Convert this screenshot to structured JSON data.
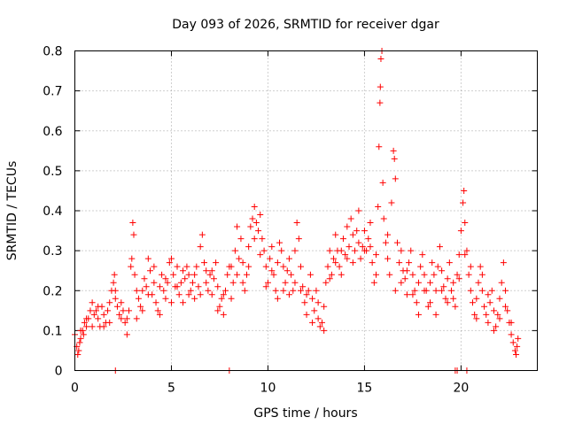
{
  "chart_data": {
    "type": "scatter",
    "title": "Day 093 of 2026, SRMTID for receiver dgar",
    "xlabel": "GPS time / hours",
    "ylabel": "SRMTID / TECUs",
    "xlim": [
      0,
      23.95
    ],
    "ylim": [
      0,
      0.8
    ],
    "xticks": [
      0,
      5,
      10,
      15,
      20
    ],
    "yticks": [
      0,
      0.1,
      0.2,
      0.3,
      0.4,
      0.5,
      0.6,
      0.7,
      0.8
    ],
    "x_tick_labels": [
      "0",
      "5",
      "10",
      "15",
      "20"
    ],
    "y_tick_labels": [
      "0",
      "0.1",
      "0.2",
      "0.3",
      "0.4",
      "0.5",
      "0.6",
      "0.7",
      "0.8"
    ],
    "grid": true,
    "marker": "plus",
    "color": "#ff0000",
    "series": [
      {
        "name": "SRMTID",
        "points": [
          [
            0.0,
            0.09
          ],
          [
            0.1,
            0.06
          ],
          [
            0.15,
            0.04
          ],
          [
            0.2,
            0.05
          ],
          [
            0.25,
            0.07
          ],
          [
            0.3,
            0.08
          ],
          [
            0.4,
            0.1
          ],
          [
            0.45,
            0.09
          ],
          [
            0.5,
            0.12
          ],
          [
            0.6,
            0.11
          ],
          [
            0.7,
            0.13
          ],
          [
            0.8,
            0.15
          ],
          [
            0.9,
            0.17
          ],
          [
            1.0,
            0.14
          ],
          [
            1.1,
            0.15
          ],
          [
            1.2,
            0.13
          ],
          [
            1.3,
            0.11
          ],
          [
            1.4,
            0.16
          ],
          [
            1.5,
            0.14
          ],
          [
            1.6,
            0.12
          ],
          [
            1.7,
            0.15
          ],
          [
            1.8,
            0.17
          ],
          [
            1.9,
            0.2
          ],
          [
            2.0,
            0.22
          ],
          [
            2.05,
            0.24
          ],
          [
            2.1,
            0.18
          ],
          [
            2.2,
            0.16
          ],
          [
            2.3,
            0.14
          ],
          [
            2.4,
            0.13
          ],
          [
            2.5,
            0.15
          ],
          [
            2.6,
            0.12
          ],
          [
            2.7,
            0.09
          ],
          [
            2.8,
            0.15
          ],
          [
            2.9,
            0.26
          ],
          [
            2.95,
            0.28
          ],
          [
            3.0,
            0.37
          ],
          [
            3.05,
            0.34
          ],
          [
            3.1,
            0.24
          ],
          [
            3.2,
            0.2
          ],
          [
            3.3,
            0.18
          ],
          [
            3.4,
            0.16
          ],
          [
            3.5,
            0.2
          ],
          [
            3.6,
            0.23
          ],
          [
            3.7,
            0.21
          ],
          [
            3.8,
            0.28
          ],
          [
            3.9,
            0.25
          ],
          [
            4.0,
            0.19
          ],
          [
            4.1,
            0.22
          ],
          [
            4.2,
            0.17
          ],
          [
            4.3,
            0.15
          ],
          [
            4.4,
            0.21
          ],
          [
            4.5,
            0.24
          ],
          [
            4.6,
            0.2
          ],
          [
            4.7,
            0.18
          ],
          [
            4.8,
            0.22
          ],
          [
            4.9,
            0.27
          ],
          [
            5.0,
            0.28
          ],
          [
            5.1,
            0.24
          ],
          [
            5.2,
            0.21
          ],
          [
            5.3,
            0.26
          ],
          [
            5.4,
            0.19
          ],
          [
            5.5,
            0.22
          ],
          [
            5.6,
            0.17
          ],
          [
            5.7,
            0.23
          ],
          [
            5.8,
            0.26
          ],
          [
            5.9,
            0.24
          ],
          [
            6.0,
            0.2
          ],
          [
            6.1,
            0.22
          ],
          [
            6.2,
            0.18
          ],
          [
            6.3,
            0.26
          ],
          [
            6.4,
            0.21
          ],
          [
            6.5,
            0.31
          ],
          [
            6.6,
            0.34
          ],
          [
            6.7,
            0.27
          ],
          [
            6.8,
            0.22
          ],
          [
            6.9,
            0.2
          ],
          [
            7.0,
            0.24
          ],
          [
            7.1,
            0.19
          ],
          [
            7.2,
            0.23
          ],
          [
            7.3,
            0.27
          ],
          [
            7.4,
            0.21
          ],
          [
            7.5,
            0.16
          ],
          [
            7.6,
            0.18
          ],
          [
            7.7,
            0.14
          ],
          [
            7.8,
            0.2
          ],
          [
            7.9,
            0.24
          ],
          [
            8.0,
            0.26
          ],
          [
            8.1,
            0.18
          ],
          [
            8.2,
            0.22
          ],
          [
            8.3,
            0.3
          ],
          [
            8.4,
            0.36
          ],
          [
            8.5,
            0.28
          ],
          [
            8.6,
            0.33
          ],
          [
            8.7,
            0.27
          ],
          [
            8.8,
            0.2
          ],
          [
            8.9,
            0.24
          ],
          [
            9.0,
            0.31
          ],
          [
            9.1,
            0.36
          ],
          [
            9.2,
            0.38
          ],
          [
            9.3,
            0.41
          ],
          [
            9.4,
            0.37
          ],
          [
            9.5,
            0.35
          ],
          [
            9.6,
            0.39
          ],
          [
            9.7,
            0.33
          ],
          [
            9.8,
            0.3
          ],
          [
            9.9,
            0.26
          ],
          [
            10.0,
            0.22
          ],
          [
            10.1,
            0.28
          ],
          [
            10.2,
            0.31
          ],
          [
            10.3,
            0.24
          ],
          [
            10.4,
            0.2
          ],
          [
            10.5,
            0.27
          ],
          [
            10.6,
            0.32
          ],
          [
            10.7,
            0.3
          ],
          [
            10.8,
            0.26
          ],
          [
            10.9,
            0.22
          ],
          [
            11.0,
            0.25
          ],
          [
            11.1,
            0.28
          ],
          [
            11.2,
            0.24
          ],
          [
            11.3,
            0.2
          ],
          [
            11.4,
            0.3
          ],
          [
            11.5,
            0.37
          ],
          [
            11.6,
            0.33
          ],
          [
            11.7,
            0.26
          ],
          [
            11.8,
            0.21
          ],
          [
            11.9,
            0.17
          ],
          [
            12.0,
            0.14
          ],
          [
            12.1,
            0.2
          ],
          [
            12.2,
            0.24
          ],
          [
            12.3,
            0.18
          ],
          [
            12.4,
            0.15
          ],
          [
            12.5,
            0.2
          ],
          [
            12.6,
            0.13
          ],
          [
            12.7,
            0.11
          ],
          [
            12.8,
            0.12
          ],
          [
            12.9,
            0.16
          ],
          [
            13.0,
            0.22
          ],
          [
            13.1,
            0.26
          ],
          [
            13.2,
            0.3
          ],
          [
            13.3,
            0.24
          ],
          [
            13.4,
            0.28
          ],
          [
            13.5,
            0.34
          ],
          [
            13.6,
            0.3
          ],
          [
            13.7,
            0.26
          ],
          [
            13.8,
            0.3
          ],
          [
            13.9,
            0.33
          ],
          [
            14.0,
            0.29
          ],
          [
            14.1,
            0.36
          ],
          [
            14.2,
            0.31
          ],
          [
            14.3,
            0.38
          ],
          [
            14.4,
            0.34
          ],
          [
            14.5,
            0.3
          ],
          [
            14.6,
            0.35
          ],
          [
            14.7,
            0.32
          ],
          [
            14.8,
            0.28
          ],
          [
            14.9,
            0.31
          ],
          [
            15.0,
            0.35
          ],
          [
            15.1,
            0.3
          ],
          [
            15.2,
            0.33
          ],
          [
            15.3,
            0.37
          ],
          [
            15.4,
            0.27
          ],
          [
            15.5,
            0.22
          ],
          [
            15.6,
            0.29
          ],
          [
            15.7,
            0.41
          ],
          [
            15.75,
            0.56
          ],
          [
            15.8,
            0.67
          ],
          [
            15.82,
            0.71
          ],
          [
            15.85,
            0.78
          ],
          [
            15.9,
            0.8
          ],
          [
            15.95,
            0.47
          ],
          [
            16.0,
            0.38
          ],
          [
            16.1,
            0.32
          ],
          [
            16.2,
            0.28
          ],
          [
            16.3,
            0.24
          ],
          [
            16.4,
            0.42
          ],
          [
            16.5,
            0.55
          ],
          [
            16.55,
            0.53
          ],
          [
            16.6,
            0.48
          ],
          [
            16.7,
            0.32
          ],
          [
            16.8,
            0.27
          ],
          [
            16.9,
            0.3
          ],
          [
            17.0,
            0.25
          ],
          [
            17.1,
            0.23
          ],
          [
            17.2,
            0.19
          ],
          [
            17.3,
            0.27
          ],
          [
            17.4,
            0.3
          ],
          [
            17.5,
            0.24
          ],
          [
            17.6,
            0.2
          ],
          [
            17.7,
            0.17
          ],
          [
            17.8,
            0.22
          ],
          [
            17.9,
            0.26
          ],
          [
            18.0,
            0.29
          ],
          [
            18.1,
            0.24
          ],
          [
            18.2,
            0.2
          ],
          [
            18.3,
            0.16
          ],
          [
            18.4,
            0.22
          ],
          [
            18.5,
            0.27
          ],
          [
            18.6,
            0.24
          ],
          [
            18.7,
            0.2
          ],
          [
            18.8,
            0.26
          ],
          [
            18.9,
            0.31
          ],
          [
            19.0,
            0.25
          ],
          [
            19.1,
            0.21
          ],
          [
            19.2,
            0.18
          ],
          [
            19.3,
            0.23
          ],
          [
            19.4,
            0.27
          ],
          [
            19.5,
            0.2
          ],
          [
            19.6,
            0.18
          ],
          [
            19.7,
            0.16
          ],
          [
            19.8,
            0.24
          ],
          [
            19.9,
            0.29
          ],
          [
            20.0,
            0.35
          ],
          [
            20.1,
            0.42
          ],
          [
            20.15,
            0.45
          ],
          [
            20.2,
            0.37
          ],
          [
            20.3,
            0.3
          ],
          [
            20.4,
            0.24
          ],
          [
            20.5,
            0.2
          ],
          [
            20.6,
            0.17
          ],
          [
            20.7,
            0.14
          ],
          [
            20.8,
            0.18
          ],
          [
            20.9,
            0.22
          ],
          [
            21.0,
            0.26
          ],
          [
            21.1,
            0.2
          ],
          [
            21.2,
            0.16
          ],
          [
            21.3,
            0.14
          ],
          [
            21.4,
            0.12
          ],
          [
            21.5,
            0.17
          ],
          [
            21.6,
            0.2
          ],
          [
            21.7,
            0.15
          ],
          [
            21.8,
            0.11
          ],
          [
            21.9,
            0.14
          ],
          [
            22.0,
            0.18
          ],
          [
            22.1,
            0.22
          ],
          [
            22.2,
            0.27
          ],
          [
            22.3,
            0.2
          ],
          [
            22.4,
            0.15
          ],
          [
            22.5,
            0.12
          ],
          [
            22.6,
            0.09
          ],
          [
            22.7,
            0.07
          ],
          [
            22.8,
            0.05
          ],
          [
            22.85,
            0.04
          ],
          [
            22.9,
            0.06
          ],
          [
            22.95,
            0.08
          ],
          [
            0.3,
            0.1
          ],
          [
            0.6,
            0.13
          ],
          [
            0.9,
            0.11
          ],
          [
            1.2,
            0.16
          ],
          [
            1.5,
            0.11
          ],
          [
            1.8,
            0.12
          ],
          [
            2.1,
            0.2
          ],
          [
            2.4,
            0.17
          ],
          [
            2.7,
            0.13
          ],
          [
            3.2,
            0.13
          ],
          [
            3.5,
            0.15
          ],
          [
            3.8,
            0.19
          ],
          [
            4.1,
            0.26
          ],
          [
            4.4,
            0.14
          ],
          [
            4.7,
            0.23
          ],
          [
            5.0,
            0.17
          ],
          [
            5.3,
            0.21
          ],
          [
            5.6,
            0.25
          ],
          [
            5.9,
            0.19
          ],
          [
            6.2,
            0.24
          ],
          [
            6.5,
            0.19
          ],
          [
            6.8,
            0.25
          ],
          [
            7.1,
            0.25
          ],
          [
            7.4,
            0.15
          ],
          [
            7.7,
            0.19
          ],
          [
            8.1,
            0.26
          ],
          [
            8.4,
            0.24
          ],
          [
            8.7,
            0.22
          ],
          [
            9.0,
            0.26
          ],
          [
            9.3,
            0.33
          ],
          [
            9.6,
            0.29
          ],
          [
            9.9,
            0.21
          ],
          [
            10.2,
            0.25
          ],
          [
            10.5,
            0.18
          ],
          [
            10.8,
            0.2
          ],
          [
            11.1,
            0.19
          ],
          [
            11.4,
            0.22
          ],
          [
            11.7,
            0.2
          ],
          [
            12.0,
            0.19
          ],
          [
            12.3,
            0.12
          ],
          [
            12.6,
            0.17
          ],
          [
            12.9,
            0.1
          ],
          [
            13.2,
            0.23
          ],
          [
            13.5,
            0.27
          ],
          [
            13.8,
            0.24
          ],
          [
            14.1,
            0.28
          ],
          [
            14.4,
            0.27
          ],
          [
            14.7,
            0.4
          ],
          [
            15.0,
            0.3
          ],
          [
            15.3,
            0.31
          ],
          [
            15.6,
            0.24
          ],
          [
            16.2,
            0.34
          ],
          [
            16.6,
            0.2
          ],
          [
            16.9,
            0.22
          ],
          [
            17.2,
            0.25
          ],
          [
            17.5,
            0.19
          ],
          [
            17.8,
            0.14
          ],
          [
            18.1,
            0.2
          ],
          [
            18.4,
            0.17
          ],
          [
            18.7,
            0.14
          ],
          [
            19.0,
            0.2
          ],
          [
            19.3,
            0.17
          ],
          [
            19.6,
            0.22
          ],
          [
            19.9,
            0.23
          ],
          [
            20.2,
            0.29
          ],
          [
            20.5,
            0.26
          ],
          [
            20.8,
            0.13
          ],
          [
            21.1,
            0.24
          ],
          [
            21.4,
            0.19
          ],
          [
            21.7,
            0.1
          ],
          [
            22.0,
            0.13
          ],
          [
            22.3,
            0.16
          ],
          [
            22.6,
            0.12
          ],
          [
            2.1,
            0.0
          ],
          [
            8.0,
            0.0
          ],
          [
            19.7,
            0.0
          ],
          [
            19.8,
            0.0
          ],
          [
            20.3,
            0.0
          ]
        ]
      }
    ]
  }
}
